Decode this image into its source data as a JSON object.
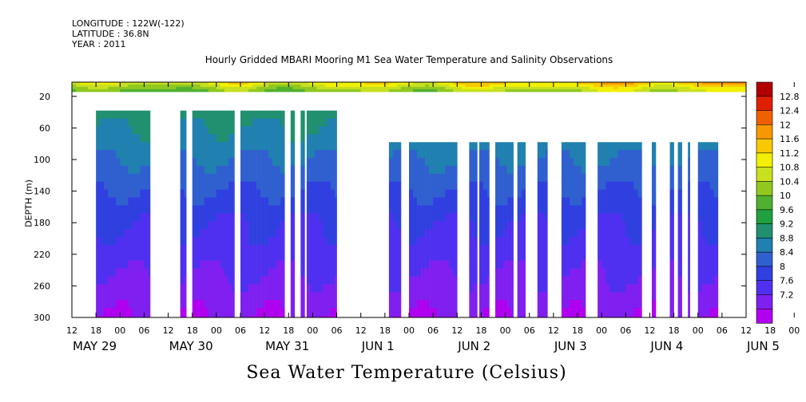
{
  "header": {
    "longitude": "LONGITUDE : 122W(-122)",
    "latitude": "LATITUDE : 36.8N",
    "year": "YEAR : 2011"
  },
  "chart_data": {
    "type": "heatmap",
    "title": "Hourly Gridded MBARI Mooring M1 Sea Water Temperature and Salinity Observations",
    "xlabel": "Sea Water Temperature (Celsius)",
    "ylabel": "DEPTH (m)",
    "ylim": [
      300,
      2
    ],
    "yticks": [
      20,
      60,
      100,
      140,
      180,
      220,
      260,
      300
    ],
    "x_hour_ticks": [
      "12",
      "18",
      "00",
      "06",
      "12",
      "18",
      "00",
      "06",
      "12",
      "18",
      "00",
      "06",
      "12",
      "18",
      "00",
      "06",
      "12",
      "18",
      "00",
      "06",
      "12",
      "18",
      "00",
      "06",
      "12",
      "18",
      "00",
      "06",
      "12",
      "18",
      "00",
      "06",
      "12"
    ],
    "x_date_labels": [
      "MAY 29",
      "MAY 30",
      "MAY 31",
      "JUN  1",
      "JUN  2",
      "JUN  3",
      "JUN  4",
      "JUN  5"
    ],
    "xlim_hours": [
      0,
      168
    ],
    "colorbar": {
      "levels": [
        7.2,
        7.6,
        8,
        8.4,
        8.8,
        9.2,
        9.6,
        10,
        10.4,
        10.8,
        11.2,
        11.6,
        12,
        12.4,
        12.8
      ],
      "labels": [
        "12.8",
        "12.4",
        "12",
        "11.6",
        "11.2",
        "10.8",
        "10.4",
        "10",
        "9.6",
        "9.2",
        "8.8",
        "8.4",
        "8",
        "7.6",
        "7.2"
      ],
      "colors": [
        "#b000f0",
        "#8020f0",
        "#5030f0",
        "#3040e0",
        "#3060d0",
        "#2080b0",
        "#209070",
        "#20a040",
        "#50b030",
        "#90c820",
        "#c8e020",
        "#f0f000",
        "#f8c800",
        "#f89800",
        "#f06000",
        "#e02000",
        "#b00000"
      ]
    },
    "temperature_profile": {
      "depths": [
        2,
        10,
        20,
        40,
        60,
        80,
        100,
        140,
        180,
        220,
        260,
        300
      ],
      "temps": [
        11.2,
        10.4,
        9.8,
        9.4,
        9.2,
        9.0,
        8.8,
        8.4,
        8.0,
        7.8,
        7.5,
        7.2
      ]
    },
    "data_blocks_hours": [
      [
        6,
        19.5
      ],
      [
        27,
        28.5
      ],
      [
        30,
        40.5
      ],
      [
        42,
        53
      ],
      [
        54.5,
        55.5
      ],
      [
        57,
        58
      ],
      [
        58.5,
        66
      ],
      [
        79,
        82
      ],
      [
        84,
        96
      ],
      [
        99,
        101
      ],
      [
        101.5,
        104
      ],
      [
        105.5,
        110
      ],
      [
        111,
        113
      ],
      [
        116,
        118.5
      ],
      [
        122,
        128
      ],
      [
        131,
        142
      ],
      [
        144.5,
        145.5
      ],
      [
        149,
        150
      ],
      [
        151,
        152
      ],
      [
        153.5,
        154
      ],
      [
        156,
        161
      ]
    ]
  }
}
